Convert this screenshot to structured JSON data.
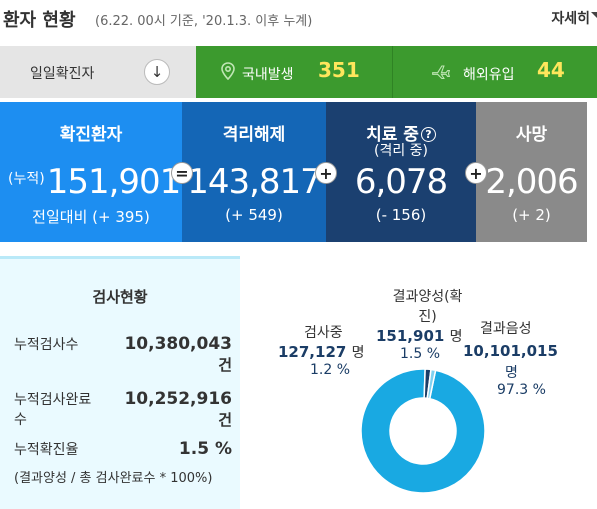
{
  "header": {
    "title": "환자 현황",
    "subtitle": "(6.22. 00시 기준, '20.1.3. 이후 누계)",
    "more_label": "자세히"
  },
  "tabs": {
    "daily_label": "일일확진자",
    "daily_arrow": "↓",
    "domestic_label": "국내발생",
    "domestic_value": "351",
    "overseas_label": "해외유입",
    "overseas_value": "44"
  },
  "cards": {
    "confirmed": {
      "title": "확진환자",
      "prefix": "(누적)",
      "value": "151,901",
      "diff": "전일대비 (+ 395)"
    },
    "released": {
      "title": "격리해제",
      "value": "143,817",
      "diff": "(+ 549)"
    },
    "treatment": {
      "title": "치료 중",
      "help": "?",
      "subtitle": "(격리 중)",
      "value": "6,078",
      "diff": "(- 156)"
    },
    "death": {
      "title": "사망",
      "value": "2,006",
      "diff": "(+ 2)"
    },
    "op_equals": "=",
    "op_plus1": "+",
    "op_plus2": "+",
    "op_plus3": "+"
  },
  "tests": {
    "title": "검사현황",
    "rows": [
      {
        "label": "누적검사수",
        "value": "10,380,043",
        "unit": "건"
      },
      {
        "label_line1": "누적검사완료",
        "label_line2": "수",
        "value": "10,252,916",
        "unit": "건"
      },
      {
        "label": "누적확진율",
        "value": "1.5 %"
      }
    ],
    "note": "(결과양성 / 총 검사완료수 * 100%)"
  },
  "pie": {
    "testing": {
      "label": "검사중",
      "value": "127,127",
      "unit": "명",
      "pct": "1.2 %"
    },
    "positive": {
      "label_line1": "결과양성(확",
      "label_line2": "진)",
      "value": "151,901",
      "unit": "명",
      "pct": "1.5 %"
    },
    "negative": {
      "label": "결과음성",
      "value": "10,101,015",
      "unit": "명",
      "pct": "97.3 %"
    },
    "colors": {
      "negative": "#19a9e2",
      "positive": "#1b3d66",
      "testing": "#7fd1f0",
      "gap": "#ffffff"
    }
  },
  "chart_data": {
    "type": "pie",
    "categories": [
      "결과음성",
      "결과양성(확진)",
      "검사중"
    ],
    "values": [
      97.3,
      1.5,
      1.2
    ],
    "counts": [
      10101015,
      151901,
      127127
    ]
  },
  "colors": {
    "confirmed": "#1d8ef1",
    "released": "#1466b6",
    "treatment": "#1b4070",
    "death": "#8a8a8a",
    "green": "#3c9a2e",
    "yellow": "#ffe65c"
  }
}
